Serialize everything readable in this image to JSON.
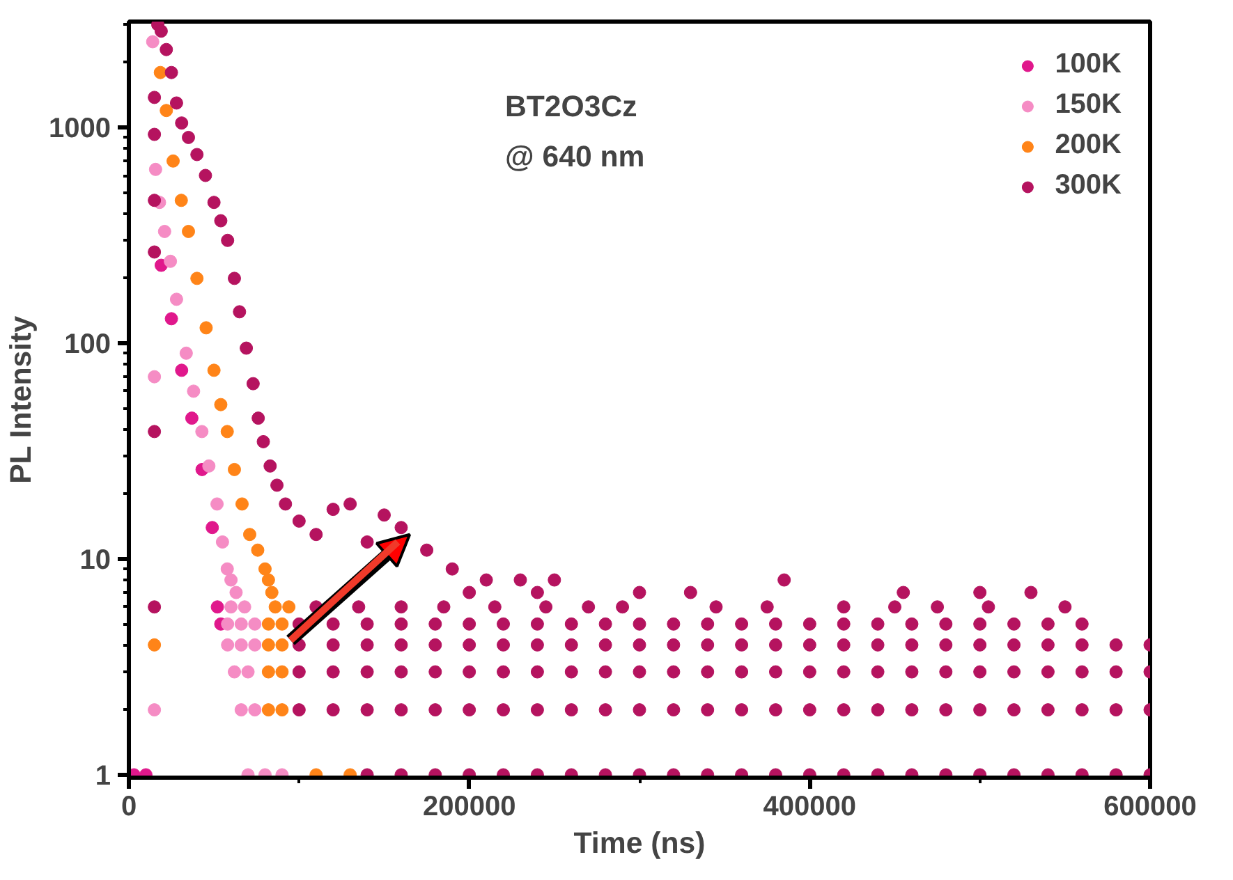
{
  "chart_data": {
    "type": "scatter",
    "xlabel": "Time (ns)",
    "ylabel": "PL Intensity",
    "annotations": [
      "BT2O3Cz",
      "@ 640 nm"
    ],
    "log": "y",
    "xlim": [
      0,
      600000
    ],
    "xticks": [
      0,
      200000,
      400000,
      600000
    ],
    "ylim": [
      0.97,
      3100
    ],
    "yticks": [
      1,
      10,
      100,
      1000
    ],
    "legend": "top right",
    "marker": "circle",
    "grid": false,
    "series": [
      {
        "name": "100K",
        "color": "#e0188c",
        "x": [
          3000,
          10000,
          19000,
          25000,
          31000,
          37000,
          43000,
          49000,
          52000,
          54000
        ],
        "values": [
          1,
          1,
          230,
          130,
          75,
          45,
          26,
          14,
          6,
          5
        ]
      },
      {
        "name": "150K",
        "color": "#f58cc4",
        "x": [
          14000,
          15700,
          18000,
          21000,
          24400,
          28000,
          33700,
          38000,
          42900,
          47000,
          51800,
          55000,
          57800,
          15000,
          15000,
          60000,
          63000,
          60000,
          68000,
          58000,
          66000,
          74000,
          58000,
          66000,
          74000,
          62000,
          70000,
          66000,
          74000,
          70000,
          80000,
          90000
        ],
        "values": [
          2500,
          640,
          450,
          330,
          240,
          160,
          90,
          60,
          39,
          27,
          18,
          12,
          9,
          70,
          2,
          8,
          7,
          6,
          6,
          5,
          5,
          5,
          4,
          4,
          4,
          3,
          3,
          2,
          2,
          1,
          1,
          1
        ]
      },
      {
        "name": "200K",
        "color": "#ff8418",
        "x": [
          18500,
          22000,
          26000,
          30800,
          35000,
          40000,
          45400,
          50000,
          54000,
          57800,
          62000,
          66500,
          71000,
          75700,
          80000,
          82000,
          84000,
          86000,
          94000,
          82000,
          90000,
          82000,
          90000,
          82000,
          90000,
          82000,
          90000,
          110000,
          130000,
          15000
        ],
        "values": [
          1800,
          1200,
          700,
          460,
          330,
          200,
          118,
          75,
          52,
          39,
          26,
          18,
          13,
          11,
          9,
          8,
          7,
          6,
          6,
          5,
          5,
          4,
          4,
          3,
          3,
          2,
          2,
          1,
          1,
          4
        ]
      },
      {
        "name": "300K",
        "color": "#b5135f",
        "x": [
          17000,
          19000,
          22000,
          25000,
          28000,
          31000,
          35000,
          40000,
          45000,
          50000,
          54000,
          58000,
          62000,
          65000,
          69000,
          73000,
          76000,
          79000,
          83000,
          87000,
          92000,
          100000,
          110000,
          120000,
          130000,
          140000,
          150000,
          160000,
          175000,
          190000,
          210000,
          230000,
          250000,
          385000,
          15000,
          15000,
          15000,
          15000,
          15000,
          15000,
          200000,
          240000,
          300000,
          330000,
          455000,
          500000,
          530000,
          110000,
          135000,
          160000,
          185000,
          215000,
          245000,
          270000,
          290000,
          345000,
          375000,
          420000,
          450000,
          475000,
          505000,
          550000,
          100000,
          120000,
          140000,
          160000,
          180000,
          200000,
          220000,
          240000,
          260000,
          280000,
          300000,
          320000,
          340000,
          360000,
          380000,
          400000,
          420000,
          440000,
          460000,
          480000,
          500000,
          520000,
          540000,
          560000,
          100000,
          120000,
          140000,
          160000,
          180000,
          200000,
          220000,
          240000,
          260000,
          280000,
          300000,
          320000,
          340000,
          360000,
          380000,
          400000,
          420000,
          440000,
          460000,
          480000,
          500000,
          520000,
          540000,
          560000,
          580000,
          600000,
          100000,
          120000,
          140000,
          160000,
          180000,
          200000,
          220000,
          240000,
          260000,
          280000,
          300000,
          320000,
          340000,
          360000,
          380000,
          400000,
          420000,
          440000,
          460000,
          480000,
          500000,
          520000,
          540000,
          560000,
          580000,
          600000,
          100000,
          120000,
          140000,
          160000,
          180000,
          200000,
          220000,
          240000,
          260000,
          280000,
          300000,
          320000,
          340000,
          360000,
          380000,
          400000,
          420000,
          440000,
          460000,
          480000,
          500000,
          520000,
          540000,
          560000,
          580000,
          600000,
          140000,
          160000,
          180000,
          200000,
          220000,
          240000,
          260000,
          280000,
          300000,
          320000,
          340000,
          360000,
          380000,
          400000,
          420000,
          440000,
          460000,
          480000,
          500000,
          520000,
          540000,
          560000,
          580000,
          600000
        ],
        "values": [
          3000,
          2800,
          2300,
          1800,
          1300,
          1050,
          900,
          750,
          600,
          450,
          370,
          300,
          200,
          140,
          95,
          65,
          45,
          35,
          27,
          22,
          18,
          15,
          13,
          17,
          18,
          12,
          16,
          14,
          11,
          9,
          8,
          8,
          8,
          8,
          1380,
          930,
          460,
          265,
          39,
          6,
          7,
          7,
          7,
          7,
          7,
          7,
          7,
          6,
          6,
          6,
          6,
          6,
          6,
          6,
          6,
          6,
          6,
          6,
          6,
          6,
          6,
          6,
          5,
          5,
          5,
          5,
          5,
          5,
          5,
          5,
          5,
          5,
          5,
          5,
          5,
          5,
          5,
          5,
          5,
          5,
          5,
          5,
          5,
          5,
          5,
          5,
          4,
          4,
          4,
          4,
          4,
          4,
          4,
          4,
          4,
          4,
          4,
          4,
          4,
          4,
          4,
          4,
          4,
          4,
          4,
          4,
          4,
          4,
          4,
          4,
          4,
          4,
          3,
          3,
          3,
          3,
          3,
          3,
          3,
          3,
          3,
          3,
          3,
          3,
          3,
          3,
          3,
          3,
          3,
          3,
          3,
          3,
          3,
          3,
          3,
          3,
          3,
          3,
          2,
          2,
          2,
          2,
          2,
          2,
          2,
          2,
          2,
          2,
          2,
          2,
          2,
          2,
          2,
          2,
          2,
          2,
          2,
          2,
          2,
          2,
          2,
          2,
          2,
          2,
          1,
          1,
          1,
          1,
          1,
          1,
          1,
          1,
          1,
          1,
          1,
          1,
          1,
          1,
          1,
          1,
          1,
          1,
          1,
          1,
          1,
          1,
          1,
          1
        ]
      }
    ]
  }
}
